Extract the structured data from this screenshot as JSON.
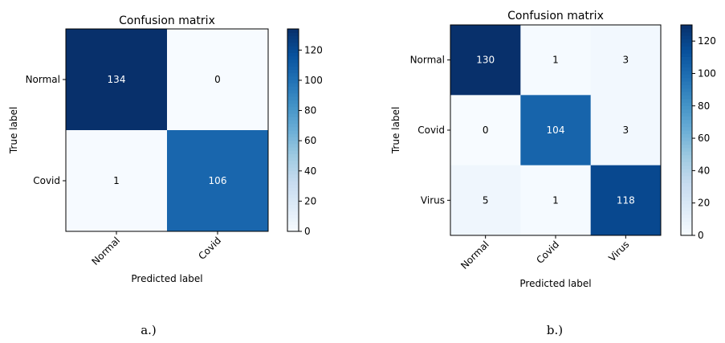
{
  "chart_data": [
    {
      "type": "heatmap",
      "title": "Confusion matrix",
      "xlabel": "Predicted label",
      "ylabel": "True label",
      "x_categories": [
        "Normal",
        "Covid"
      ],
      "y_categories": [
        "Normal",
        "Covid"
      ],
      "values": [
        [
          134,
          0
        ],
        [
          1,
          106
        ]
      ],
      "colormap": "Blues",
      "colorbar": {
        "min": 0,
        "max": 134,
        "ticks": [
          0,
          20,
          40,
          60,
          80,
          100,
          120
        ]
      },
      "caption": "a.)"
    },
    {
      "type": "heatmap",
      "title": "Confusion matrix",
      "xlabel": "Predicted label",
      "ylabel": "True label",
      "x_categories": [
        "Normal",
        "Covid",
        "Virus"
      ],
      "y_categories": [
        "Normal",
        "Covid",
        "Virus"
      ],
      "values": [
        [
          130,
          1,
          3
        ],
        [
          0,
          104,
          3
        ],
        [
          5,
          1,
          118
        ]
      ],
      "colormap": "Blues",
      "colorbar": {
        "min": 0,
        "max": 130,
        "ticks": [
          0,
          20,
          40,
          60,
          80,
          100,
          120
        ]
      },
      "caption": "b.)"
    }
  ]
}
